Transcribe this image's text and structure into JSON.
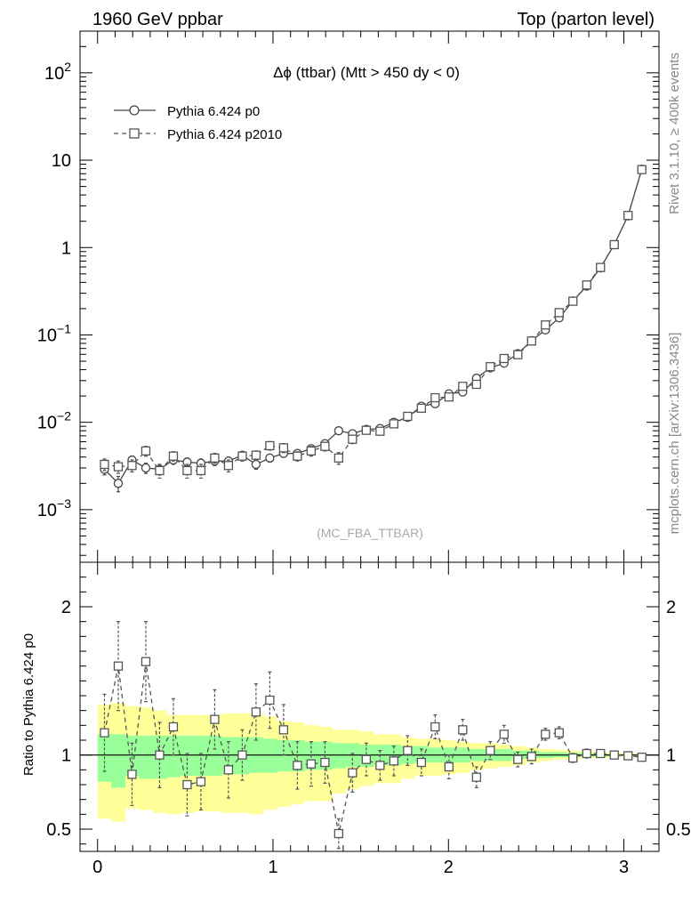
{
  "header": {
    "left_title": "1960 GeV ppbar",
    "right_title": "Top (parton level)"
  },
  "side_labels": {
    "rivet": "Rivet 3.1.10, ≥ 400k events",
    "source": "mcplots.cern.ch [arXiv:1306.3436]"
  },
  "chart_data": [
    {
      "type": "line",
      "title": "Δϕ (ttbar) (Mtt > 450 dy < 0)",
      "watermark": "(MC_FBA_TTBAR)",
      "xlim": [
        -0.1,
        3.2
      ],
      "ylim": [
        0.00025,
        300
      ],
      "yscale": "log",
      "y_ticks": [
        {
          "value": 0.001,
          "base": "10",
          "exp": "−3"
        },
        {
          "value": 0.01,
          "base": "10",
          "exp": "−2"
        },
        {
          "value": 0.1,
          "base": "10",
          "exp": "−1"
        },
        {
          "value": 1,
          "base": "1",
          "exp": ""
        },
        {
          "value": 10,
          "base": "10",
          "exp": ""
        },
        {
          "value": 100,
          "base": "10",
          "exp": "2"
        }
      ],
      "legend_position": "top-left",
      "x": [
        0.0393,
        0.1178,
        0.1963,
        0.2749,
        0.3534,
        0.432,
        0.5105,
        0.589,
        0.6676,
        0.7461,
        0.8247,
        0.9032,
        0.9817,
        1.0603,
        1.1388,
        1.2174,
        1.2959,
        1.3744,
        1.453,
        1.5315,
        1.6101,
        1.6886,
        1.7671,
        1.8457,
        1.9242,
        2.0028,
        2.0813,
        2.1598,
        2.2384,
        2.3169,
        2.3955,
        2.474,
        2.5525,
        2.6311,
        2.7096,
        2.7882,
        2.8667,
        2.9452,
        3.0238,
        3.1023
      ],
      "series": [
        {
          "name": "Pythia 6.424 p0",
          "marker": "circle",
          "line": "solid",
          "color": "#444444",
          "values": [
            0.0029,
            0.002,
            0.0037,
            0.003,
            0.0029,
            0.0037,
            0.0035,
            0.0034,
            0.0036,
            0.0036,
            0.0042,
            0.0033,
            0.0039,
            0.0044,
            0.0044,
            0.005,
            0.0057,
            0.008,
            0.0074,
            0.0083,
            0.0085,
            0.01,
            0.0114,
            0.0153,
            0.0163,
            0.0212,
            0.0222,
            0.032,
            0.042,
            0.0475,
            0.061,
            0.086,
            0.114,
            0.157,
            0.245,
            0.362,
            0.585,
            1.08,
            2.31,
            7.9
          ],
          "errors": [
            0.0004,
            0.0004,
            0.0004,
            0.0004,
            0.0004,
            0.0004,
            0.0004,
            0.0004,
            0.0004,
            0.0004,
            0.0004,
            0.0004,
            0.0004,
            0.0004,
            0.0004,
            0.0004,
            0.0005,
            0.0005,
            0.0005,
            0.0005,
            0.0006,
            0.0006,
            0.0007,
            0.0008,
            0.0009,
            0.0011,
            0.0012,
            0.0015,
            0.0018,
            0.002,
            0.0024,
            0.003,
            0.0036,
            0.0046,
            0.0065,
            0.009,
            0.013,
            0.022,
            0.04,
            0.11
          ]
        },
        {
          "name": "Pythia 6.424 p2010",
          "marker": "square",
          "line": "dashed",
          "color": "#555555",
          "values": [
            0.0033,
            0.0031,
            0.0032,
            0.0047,
            0.0028,
            0.0041,
            0.0028,
            0.0028,
            0.0039,
            0.0032,
            0.0041,
            0.0042,
            0.0054,
            0.0051,
            0.0041,
            0.0047,
            0.0053,
            0.0039,
            0.0064,
            0.0081,
            0.0079,
            0.0096,
            0.0117,
            0.0145,
            0.0191,
            0.0195,
            0.0258,
            0.0272,
            0.0433,
            0.0537,
            0.0594,
            0.0852,
            0.13,
            0.18,
            0.243,
            0.373,
            0.592,
            1.08,
            2.33,
            7.8
          ],
          "errors": [
            0.0005,
            0.0005,
            0.0005,
            0.0006,
            0.0005,
            0.0005,
            0.0005,
            0.0005,
            0.0005,
            0.0005,
            0.0005,
            0.0005,
            0.0006,
            0.0006,
            0.0005,
            0.0006,
            0.0006,
            0.0006,
            0.0007,
            0.0007,
            0.0007,
            0.0008,
            0.0009,
            0.001,
            0.0011,
            0.0012,
            0.0014,
            0.0016,
            0.002,
            0.0023,
            0.0026,
            0.0032,
            0.004,
            0.005,
            0.0068,
            0.0095,
            0.0135,
            0.023,
            0.042,
            0.115
          ]
        }
      ]
    },
    {
      "type": "line",
      "ylabel": "Ratio to Pythia 6.424 p0",
      "xlim": [
        -0.1,
        3.2
      ],
      "ylim": [
        0.35,
        2.3
      ],
      "y_ticks": [
        0.5,
        1,
        2
      ],
      "x_ticks": [
        0,
        1,
        2,
        3
      ],
      "reference_line": 1,
      "bands": [
        {
          "name": "inner",
          "color": "#99ff99",
          "lower": [
            0.82,
            0.78,
            0.86,
            0.84,
            0.84,
            0.85,
            0.86,
            0.86,
            0.86,
            0.87,
            0.87,
            0.88,
            0.88,
            0.89,
            0.89,
            0.9,
            0.9,
            0.91,
            0.92,
            0.92,
            0.93,
            0.93,
            0.94,
            0.95,
            0.95,
            0.95,
            0.95,
            0.96,
            0.96,
            0.96,
            0.97,
            0.98,
            0.98,
            0.985,
            0.985,
            0.99,
            0.99,
            0.992,
            0.995,
            0.996
          ],
          "upper": [
            1.14,
            1.14,
            1.13,
            1.13,
            1.13,
            1.13,
            1.13,
            1.13,
            1.13,
            1.12,
            1.12,
            1.12,
            1.11,
            1.1,
            1.1,
            1.09,
            1.09,
            1.08,
            1.08,
            1.07,
            1.07,
            1.07,
            1.06,
            1.06,
            1.05,
            1.05,
            1.05,
            1.04,
            1.04,
            1.04,
            1.03,
            1.03,
            1.02,
            1.02,
            1.015,
            1.012,
            1.01,
            1.008,
            1.005,
            1.004
          ]
        },
        {
          "name": "outer",
          "color": "#ffff99",
          "lower": [
            0.57,
            0.55,
            0.64,
            0.63,
            0.61,
            0.6,
            0.61,
            0.62,
            0.62,
            0.61,
            0.61,
            0.6,
            0.63,
            0.65,
            0.67,
            0.69,
            0.69,
            0.74,
            0.77,
            0.79,
            0.81,
            0.81,
            0.84,
            0.86,
            0.86,
            0.87,
            0.88,
            0.9,
            0.91,
            0.92,
            0.93,
            0.95,
            0.96,
            0.97,
            0.97,
            0.98,
            0.98,
            0.985,
            0.99,
            0.992
          ],
          "upper": [
            1.34,
            1.35,
            1.33,
            1.32,
            1.3,
            1.27,
            1.27,
            1.27,
            1.27,
            1.28,
            1.28,
            1.28,
            1.26,
            1.23,
            1.22,
            1.2,
            1.19,
            1.17,
            1.17,
            1.16,
            1.14,
            1.14,
            1.12,
            1.11,
            1.11,
            1.1,
            1.09,
            1.08,
            1.08,
            1.07,
            1.06,
            1.05,
            1.04,
            1.035,
            1.03,
            1.025,
            1.02,
            1.016,
            1.01,
            1.008
          ]
        }
      ],
      "series": [
        {
          "name": "Pythia 6.424 p2010",
          "marker": "square",
          "line": "dashed",
          "color": "#555555",
          "values": [
            1.15,
            1.6,
            0.87,
            1.63,
            1.0,
            1.19,
            0.8,
            0.82,
            1.24,
            0.9,
            1.0,
            1.29,
            1.37,
            1.17,
            0.93,
            0.94,
            0.95,
            0.47,
            0.88,
            0.97,
            0.93,
            0.96,
            1.03,
            0.95,
            1.19,
            0.92,
            1.17,
            0.85,
            1.03,
            1.14,
            0.97,
            0.99,
            1.14,
            1.15,
            0.98,
            1.01,
            1.01,
            1.0,
            0.995,
            0.985
          ],
          "errors": [
            0.26,
            0.3,
            0.21,
            0.27,
            0.22,
            0.19,
            0.21,
            0.19,
            0.2,
            0.19,
            0.17,
            0.19,
            0.19,
            0.17,
            0.16,
            0.15,
            0.14,
            0.1,
            0.13,
            0.11,
            0.1,
            0.1,
            0.1,
            0.09,
            0.08,
            0.08,
            0.07,
            0.07,
            0.06,
            0.06,
            0.05,
            0.05,
            0.04,
            0.04,
            0.03,
            0.03,
            0.025,
            0.02,
            0.018,
            0.015
          ]
        }
      ]
    }
  ]
}
